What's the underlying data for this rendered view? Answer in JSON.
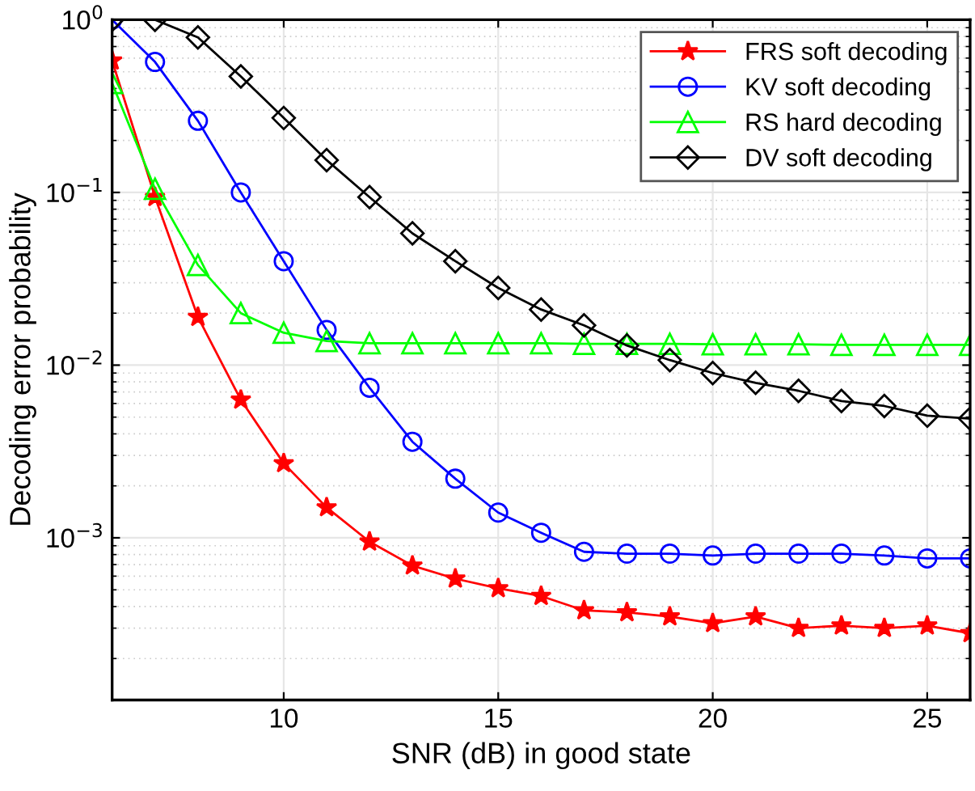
{
  "chart_data": {
    "type": "line",
    "xlabel": "SNR (dB) in good state",
    "ylabel": "Decoding error probability",
    "x": [
      6,
      7,
      8,
      9,
      10,
      11,
      12,
      13,
      14,
      15,
      16,
      17,
      18,
      19,
      20,
      21,
      22,
      23,
      24,
      25,
      26
    ],
    "series": [
      {
        "name": "FRS soft decoding",
        "color": "#ff0000",
        "marker": "star",
        "values": [
          0.58,
          0.094,
          0.019,
          0.0063,
          0.0027,
          0.0015,
          0.00095,
          0.00069,
          0.00058,
          0.00051,
          0.00046,
          0.00038,
          0.00037,
          0.00035,
          0.00032,
          0.00035,
          0.0003,
          0.00031,
          0.0003,
          0.00031,
          0.00028
        ]
      },
      {
        "name": "KV soft decoding",
        "color": "#0000ff",
        "marker": "circle",
        "values": [
          1.0,
          0.57,
          0.26,
          0.1,
          0.04,
          0.016,
          0.0074,
          0.0036,
          0.0022,
          0.0014,
          0.00107,
          0.00083,
          0.00081,
          0.00081,
          0.00079,
          0.00081,
          0.00081,
          0.00081,
          0.00079,
          0.00076,
          0.00076
        ]
      },
      {
        "name": "RS hard decoding",
        "color": "#00ff00",
        "marker": "triangle",
        "values": [
          0.43,
          0.105,
          0.038,
          0.02,
          0.0154,
          0.0138,
          0.0134,
          0.0134,
          0.0134,
          0.0134,
          0.0134,
          0.0133,
          0.0133,
          0.0133,
          0.0132,
          0.0132,
          0.0132,
          0.0131,
          0.0131,
          0.0131,
          0.0131
        ]
      },
      {
        "name": "DV soft decoding",
        "color": "#000000",
        "marker": "diamond",
        "values": [
          1.0,
          1.0,
          0.79,
          0.47,
          0.27,
          0.154,
          0.094,
          0.058,
          0.04,
          0.028,
          0.021,
          0.017,
          0.013,
          0.0107,
          0.009,
          0.0079,
          0.0071,
          0.0062,
          0.0058,
          0.0051,
          0.0049
        ]
      }
    ],
    "log": "y",
    "xlim": [
      6,
      26
    ],
    "xticks": [
      10,
      15,
      20,
      25
    ],
    "ylim": [
      0.000115,
      1
    ],
    "yticks": [
      {
        "value": 0.001,
        "label": "10$^{−3}$"
      },
      {
        "value": 0.01,
        "label": "10$^{−2}$"
      },
      {
        "value": 0.1,
        "label": "10$^{−1}$"
      },
      {
        "value": 1,
        "label": "10$^{0}$"
      }
    ],
    "grid": true,
    "legend": "top right",
    "line_style": "solid"
  }
}
